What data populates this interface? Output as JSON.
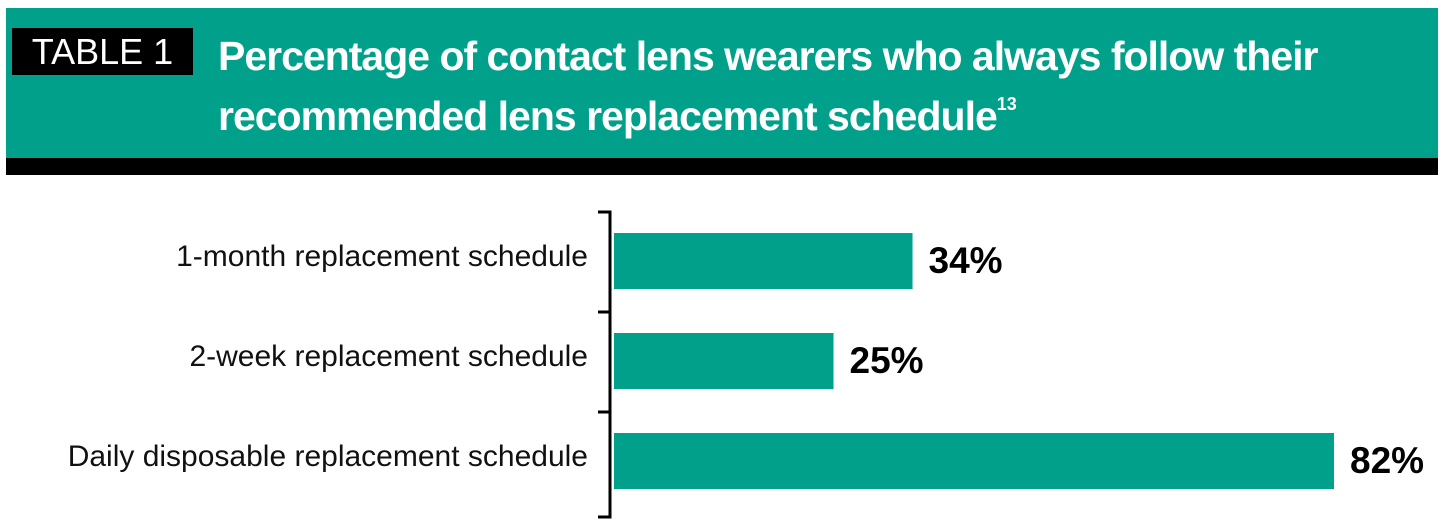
{
  "chart_data": {
    "type": "bar",
    "orientation": "horizontal",
    "label": "TABLE 1",
    "title": "Percentage of contact lens wearers who always follow their recommended lens replacement schedule",
    "title_reference": "13",
    "categories": [
      "1-month replacement schedule",
      "2-week replacement schedule",
      "Daily disposable replacement schedule"
    ],
    "values": [
      34,
      25,
      82
    ],
    "value_labels": [
      "34%",
      "25%",
      "82%"
    ],
    "color": "#00a08a"
  }
}
